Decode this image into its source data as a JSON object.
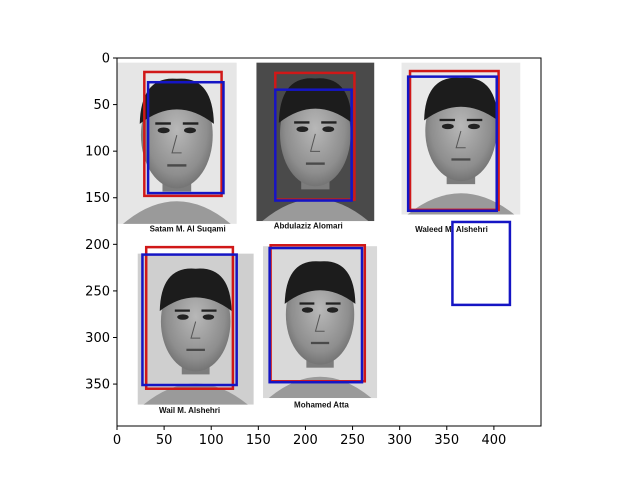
{
  "axes": {
    "x_ticks": [
      0,
      50,
      100,
      150,
      200,
      250,
      300,
      350,
      400
    ],
    "y_ticks": [
      0,
      50,
      100,
      150,
      200,
      250,
      300,
      350
    ],
    "xlim": [
      0,
      450
    ],
    "ylim": [
      0,
      395
    ],
    "y_inverted": true
  },
  "photos": [
    {
      "name": "photo-salam",
      "x0": 0,
      "y0": 5,
      "x1": 127,
      "y1": 178,
      "bg": "#e6e6e6"
    },
    {
      "name": "photo-abdulaziz",
      "x0": 148,
      "y0": 5,
      "x1": 273,
      "y1": 175,
      "bg": "#4a4a4a"
    },
    {
      "name": "photo-waleed",
      "x0": 302,
      "y0": 5,
      "x1": 428,
      "y1": 168,
      "bg": "#e9e9e9"
    },
    {
      "name": "photo-wail",
      "x0": 22,
      "y0": 210,
      "x1": 145,
      "y1": 372,
      "bg": "#cfcfcf"
    },
    {
      "name": "photo-atta",
      "x0": 155,
      "y0": 202,
      "x1": 276,
      "y1": 365,
      "bg": "#d9d9d9"
    }
  ],
  "captions": [
    {
      "text": "Satam M.  Al Suqami",
      "x": 75,
      "y": 186
    },
    {
      "text": "Abdulaziz Alomari",
      "x": 203,
      "y": 183
    },
    {
      "text": "Waleed M. Alshehri",
      "x": 355,
      "y": 187
    },
    {
      "text": "Wail M. Alshehri",
      "x": 77,
      "y": 381
    },
    {
      "text": "Mohamed Atta",
      "x": 217,
      "y": 375
    }
  ],
  "boxes": [
    {
      "color": "#d01818",
      "x0": 29,
      "y0": 15,
      "x1": 111,
      "y1": 148
    },
    {
      "color": "#1515c4",
      "x0": 33,
      "y0": 26,
      "x1": 113,
      "y1": 145
    },
    {
      "color": "#d01818",
      "x0": 168,
      "y0": 16,
      "x1": 252,
      "y1": 152
    },
    {
      "color": "#1515c4",
      "x0": 168,
      "y0": 34,
      "x1": 249,
      "y1": 153
    },
    {
      "color": "#d01818",
      "x0": 311,
      "y0": 14,
      "x1": 405,
      "y1": 163
    },
    {
      "color": "#1515c4",
      "x0": 309,
      "y0": 20,
      "x1": 403,
      "y1": 164
    },
    {
      "color": "#1515c4",
      "x0": 356,
      "y0": 176,
      "x1": 417,
      "y1": 265
    },
    {
      "color": "#d01818",
      "x0": 31,
      "y0": 203,
      "x1": 123,
      "y1": 355
    },
    {
      "color": "#1515c4",
      "x0": 27,
      "y0": 211,
      "x1": 127,
      "y1": 351
    },
    {
      "color": "#d01818",
      "x0": 163,
      "y0": 201,
      "x1": 263,
      "y1": 347
    },
    {
      "color": "#1515c4",
      "x0": 162,
      "y0": 204,
      "x1": 260,
      "y1": 348
    }
  ]
}
